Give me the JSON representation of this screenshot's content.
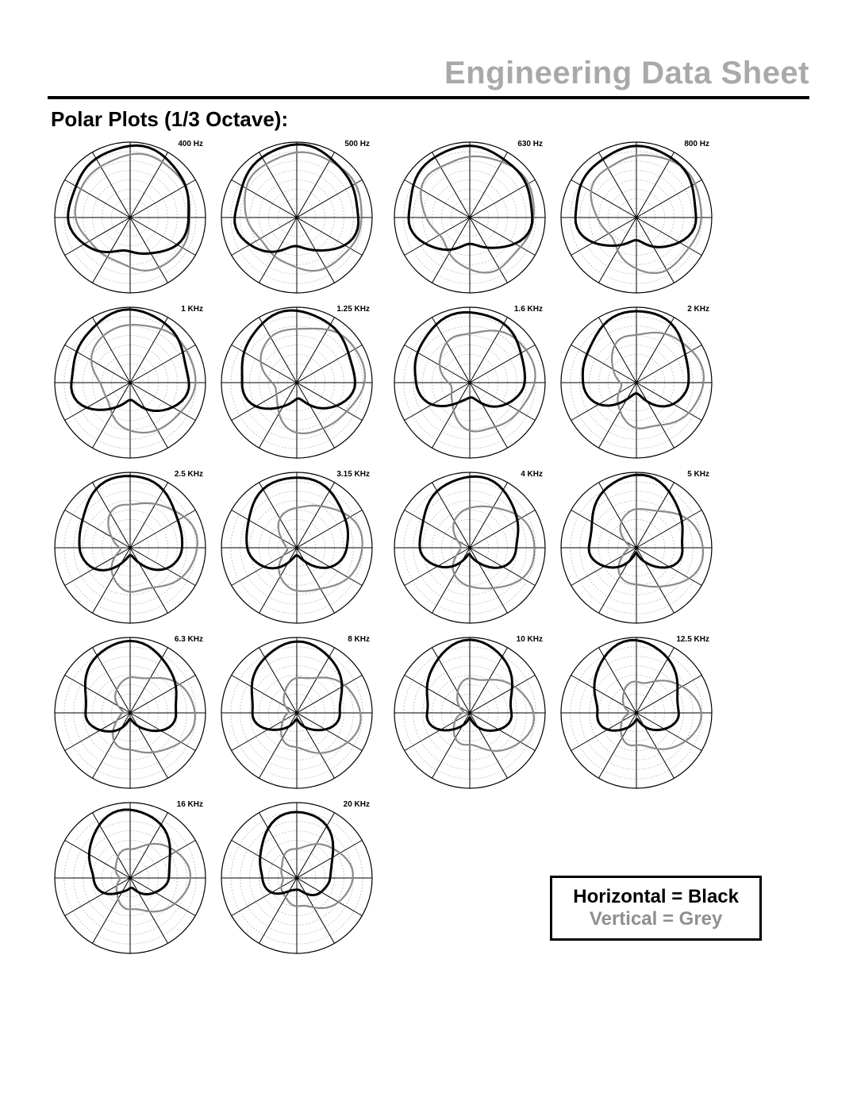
{
  "page": {
    "header_title": "Engineering Data Sheet",
    "section_title": "Polar Plots (1/3 Octave):",
    "background_color": "#ffffff",
    "header_title_color": "#a9a9a9",
    "text_color": "#000000"
  },
  "legend": {
    "line1": "Horizontal = Black",
    "line2": "Vertical = Grey",
    "line1_color": "#000000",
    "line2_color": "#8f8f8f",
    "border_color": "#000000"
  },
  "polar_style": {
    "radius_outer": 95,
    "n_rings": 8,
    "ring_stroke": "#bdbdbd",
    "ring_stroke_width": 0.8,
    "ring_dash": "2,2",
    "spoke_count": 12,
    "spoke_stroke": "#000000",
    "spoke_stroke_width": 1.0,
    "outer_ring_stroke": "#000000",
    "outer_ring_width": 1.2,
    "series_black": {
      "stroke": "#000000",
      "width": 3.0
    },
    "series_grey": {
      "stroke": "#8a8a8a",
      "width": 2.2
    },
    "angle_step_deg": 5
  },
  "plots": {
    "rows": [
      [
        {
          "label": "400 Hz",
          "black": {
            "front": 0.95,
            "side": 0.8,
            "back": 0.45,
            "angle_offset_deg": 0
          },
          "grey": {
            "front": 0.85,
            "side": 0.78,
            "back": 0.6,
            "angle_offset_deg": 40
          }
        },
        {
          "label": "500 Hz",
          "black": {
            "front": 0.95,
            "side": 0.82,
            "back": 0.4,
            "angle_offset_deg": 0
          },
          "grey": {
            "front": 0.9,
            "side": 0.8,
            "back": 0.55,
            "angle_offset_deg": 45
          }
        },
        {
          "label": "630 Hz",
          "black": {
            "front": 0.95,
            "side": 0.82,
            "back": 0.35,
            "angle_offset_deg": 0
          },
          "grey": {
            "front": 0.88,
            "side": 0.78,
            "back": 0.48,
            "angle_offset_deg": 55
          }
        },
        {
          "label": "800 Hz",
          "black": {
            "front": 0.95,
            "side": 0.8,
            "back": 0.3,
            "angle_offset_deg": 0
          },
          "grey": {
            "front": 0.9,
            "side": 0.78,
            "back": 0.42,
            "angle_offset_deg": 60
          }
        }
      ],
      [
        {
          "label": "1 KHz",
          "black": {
            "front": 0.95,
            "side": 0.78,
            "back": 0.25,
            "angle_offset_deg": 0
          },
          "grey": {
            "front": 0.88,
            "side": 0.72,
            "back": 0.35,
            "angle_offset_deg": 65
          }
        },
        {
          "label": "1.25 KHz",
          "black": {
            "front": 0.95,
            "side": 0.75,
            "back": 0.22,
            "angle_offset_deg": 0
          },
          "grey": {
            "front": 0.9,
            "side": 0.7,
            "back": 0.3,
            "angle_offset_deg": 70
          }
        },
        {
          "label": "1.6 KHz",
          "black": {
            "front": 0.95,
            "side": 0.72,
            "back": 0.18,
            "angle_offset_deg": 0
          },
          "grey": {
            "front": 0.88,
            "side": 0.65,
            "back": 0.25,
            "angle_offset_deg": 75
          }
        },
        {
          "label": "2 KHz",
          "black": {
            "front": 0.95,
            "side": 0.7,
            "back": 0.14,
            "angle_offset_deg": 0
          },
          "grey": {
            "front": 0.9,
            "side": 0.62,
            "back": 0.2,
            "angle_offset_deg": 80
          }
        }
      ],
      [
        {
          "label": "2.5 KHz",
          "black": {
            "front": 0.95,
            "side": 0.68,
            "back": 0.1,
            "angle_offset_deg": 0
          },
          "grey": {
            "front": 0.88,
            "side": 0.58,
            "back": 0.15,
            "angle_offset_deg": 85
          }
        },
        {
          "label": "3.15 KHz",
          "black": {
            "front": 0.95,
            "side": 0.66,
            "back": 0.08,
            "angle_offset_deg": 0
          },
          "grey": {
            "front": 0.88,
            "side": 0.55,
            "back": 0.12,
            "angle_offset_deg": 90
          }
        },
        {
          "label": "4 KHz",
          "black": {
            "front": 0.95,
            "side": 0.64,
            "back": 0.08,
            "angle_offset_deg": 0
          },
          "grey": {
            "front": 0.88,
            "side": 0.52,
            "back": 0.1,
            "angle_offset_deg": 90
          }
        },
        {
          "label": "5 KHz",
          "black": {
            "front": 0.95,
            "side": 0.62,
            "back": 0.08,
            "angle_offset_deg": 0
          },
          "grey": {
            "front": 0.88,
            "side": 0.5,
            "back": 0.1,
            "angle_offset_deg": 92
          }
        }
      ],
      [
        {
          "label": "6.3 KHz",
          "black": {
            "front": 0.95,
            "side": 0.6,
            "back": 0.08,
            "angle_offset_deg": 0
          },
          "grey": {
            "front": 0.86,
            "side": 0.48,
            "back": 0.1,
            "angle_offset_deg": 95
          }
        },
        {
          "label": "8 KHz",
          "black": {
            "front": 0.95,
            "side": 0.58,
            "back": 0.08,
            "angle_offset_deg": 0
          },
          "grey": {
            "front": 0.86,
            "side": 0.46,
            "back": 0.1,
            "angle_offset_deg": 95
          }
        },
        {
          "label": "10 KHz",
          "black": {
            "front": 0.95,
            "side": 0.56,
            "back": 0.08,
            "angle_offset_deg": 0
          },
          "grey": {
            "front": 0.84,
            "side": 0.44,
            "back": 0.1,
            "angle_offset_deg": 95
          }
        },
        {
          "label": "12.5 KHz",
          "black": {
            "front": 0.95,
            "side": 0.54,
            "back": 0.1,
            "angle_offset_deg": 0
          },
          "grey": {
            "front": 0.84,
            "side": 0.42,
            "back": 0.12,
            "angle_offset_deg": 95
          }
        }
      ],
      [
        {
          "label": "16 KHz",
          "black": {
            "front": 0.92,
            "side": 0.5,
            "back": 0.12,
            "angle_offset_deg": 0
          },
          "grey": {
            "front": 0.8,
            "side": 0.4,
            "back": 0.14,
            "angle_offset_deg": 90
          }
        },
        {
          "label": "20 KHz",
          "black": {
            "front": 0.88,
            "side": 0.45,
            "back": 0.15,
            "angle_offset_deg": 0
          },
          "grey": {
            "front": 0.75,
            "side": 0.38,
            "back": 0.18,
            "angle_offset_deg": 85
          }
        }
      ]
    ]
  }
}
